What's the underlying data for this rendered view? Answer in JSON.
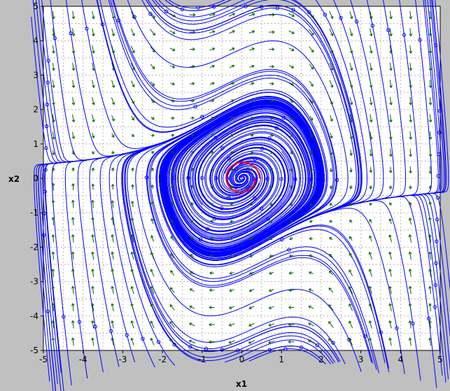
{
  "chart_data": {
    "type": "phase-portrait",
    "xlabel": "x1",
    "ylabel": "x2",
    "xlim": [
      -5,
      5
    ],
    "ylim": [
      -5,
      5
    ],
    "x_ticks": [
      "-5",
      "-4",
      "-3",
      "-2",
      "-1",
      "0",
      "1",
      "2",
      "3",
      "4",
      "5"
    ],
    "y_ticks": [
      "-5",
      "-4",
      "-3",
      "-2",
      "-1",
      "0",
      "1",
      "2",
      "3",
      "4",
      "5"
    ],
    "grid": true,
    "vector_field": "dx1/dt = x2, dx2/dt = -x1 + 0.5(1 - x1^2) x2 (Van der Pol, mu 0.5)",
    "equilibrium": [
      0,
      0
    ],
    "limit_cycle_amplitude": 2.0,
    "highlighted_orbit": {
      "center": [
        0,
        0
      ],
      "x_radius": 0.45,
      "y_radius": 0.5
    },
    "colors": {
      "background": "#c0c0c0",
      "plot_area": "#ffffff",
      "grid": "#b4b4b4",
      "trajectory": "#0000ff",
      "highlight": "#ff0000",
      "arrow": "#006400"
    }
  }
}
